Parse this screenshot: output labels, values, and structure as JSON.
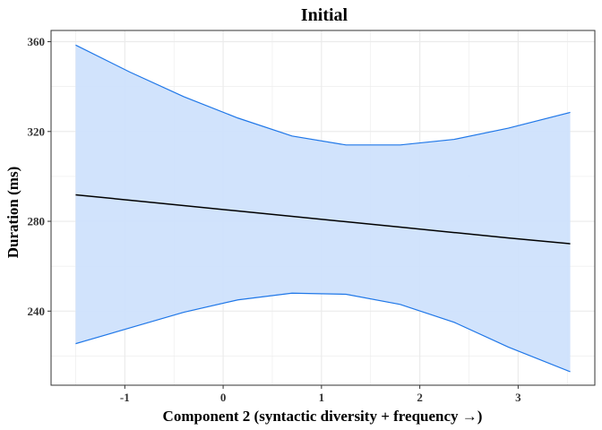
{
  "chart_data": {
    "type": "line",
    "title": "Initial",
    "xlabel": "Component 2 (syntactic diversity + frequency →)",
    "ylabel": "Duration (ms)",
    "xlim": [
      -1.75,
      3.78
    ],
    "ylim": [
      207,
      365
    ],
    "xticks": [
      -1,
      0,
      1,
      2,
      3
    ],
    "yticks": [
      240,
      280,
      320,
      360
    ],
    "grid": true,
    "legend": "none",
    "x": [
      -1.5,
      -0.95,
      -0.4,
      0.15,
      0.7,
      1.25,
      1.8,
      2.35,
      2.9,
      3.53
    ],
    "series": [
      {
        "role": "fit",
        "values": [
          291.8,
          289.4,
          287.0,
          284.6,
          282.2,
          279.8,
          277.4,
          275.0,
          272.6,
          270.0
        ],
        "color": "#000000"
      },
      {
        "role": "ci_upper",
        "values": [
          358.5,
          346.5,
          335.5,
          326.0,
          318.0,
          314.0,
          314.0,
          316.5,
          321.5,
          328.5
        ],
        "color": "#1f77e8"
      },
      {
        "role": "ci_lower",
        "values": [
          225.5,
          232.5,
          239.5,
          245.0,
          248.0,
          247.5,
          243.0,
          235.0,
          224.0,
          213.0
        ],
        "color": "#1f77e8"
      }
    ],
    "ribbon_fill": "#cfe2fc",
    "panel_border": "#333333",
    "grid_color": "#ebebeb"
  }
}
